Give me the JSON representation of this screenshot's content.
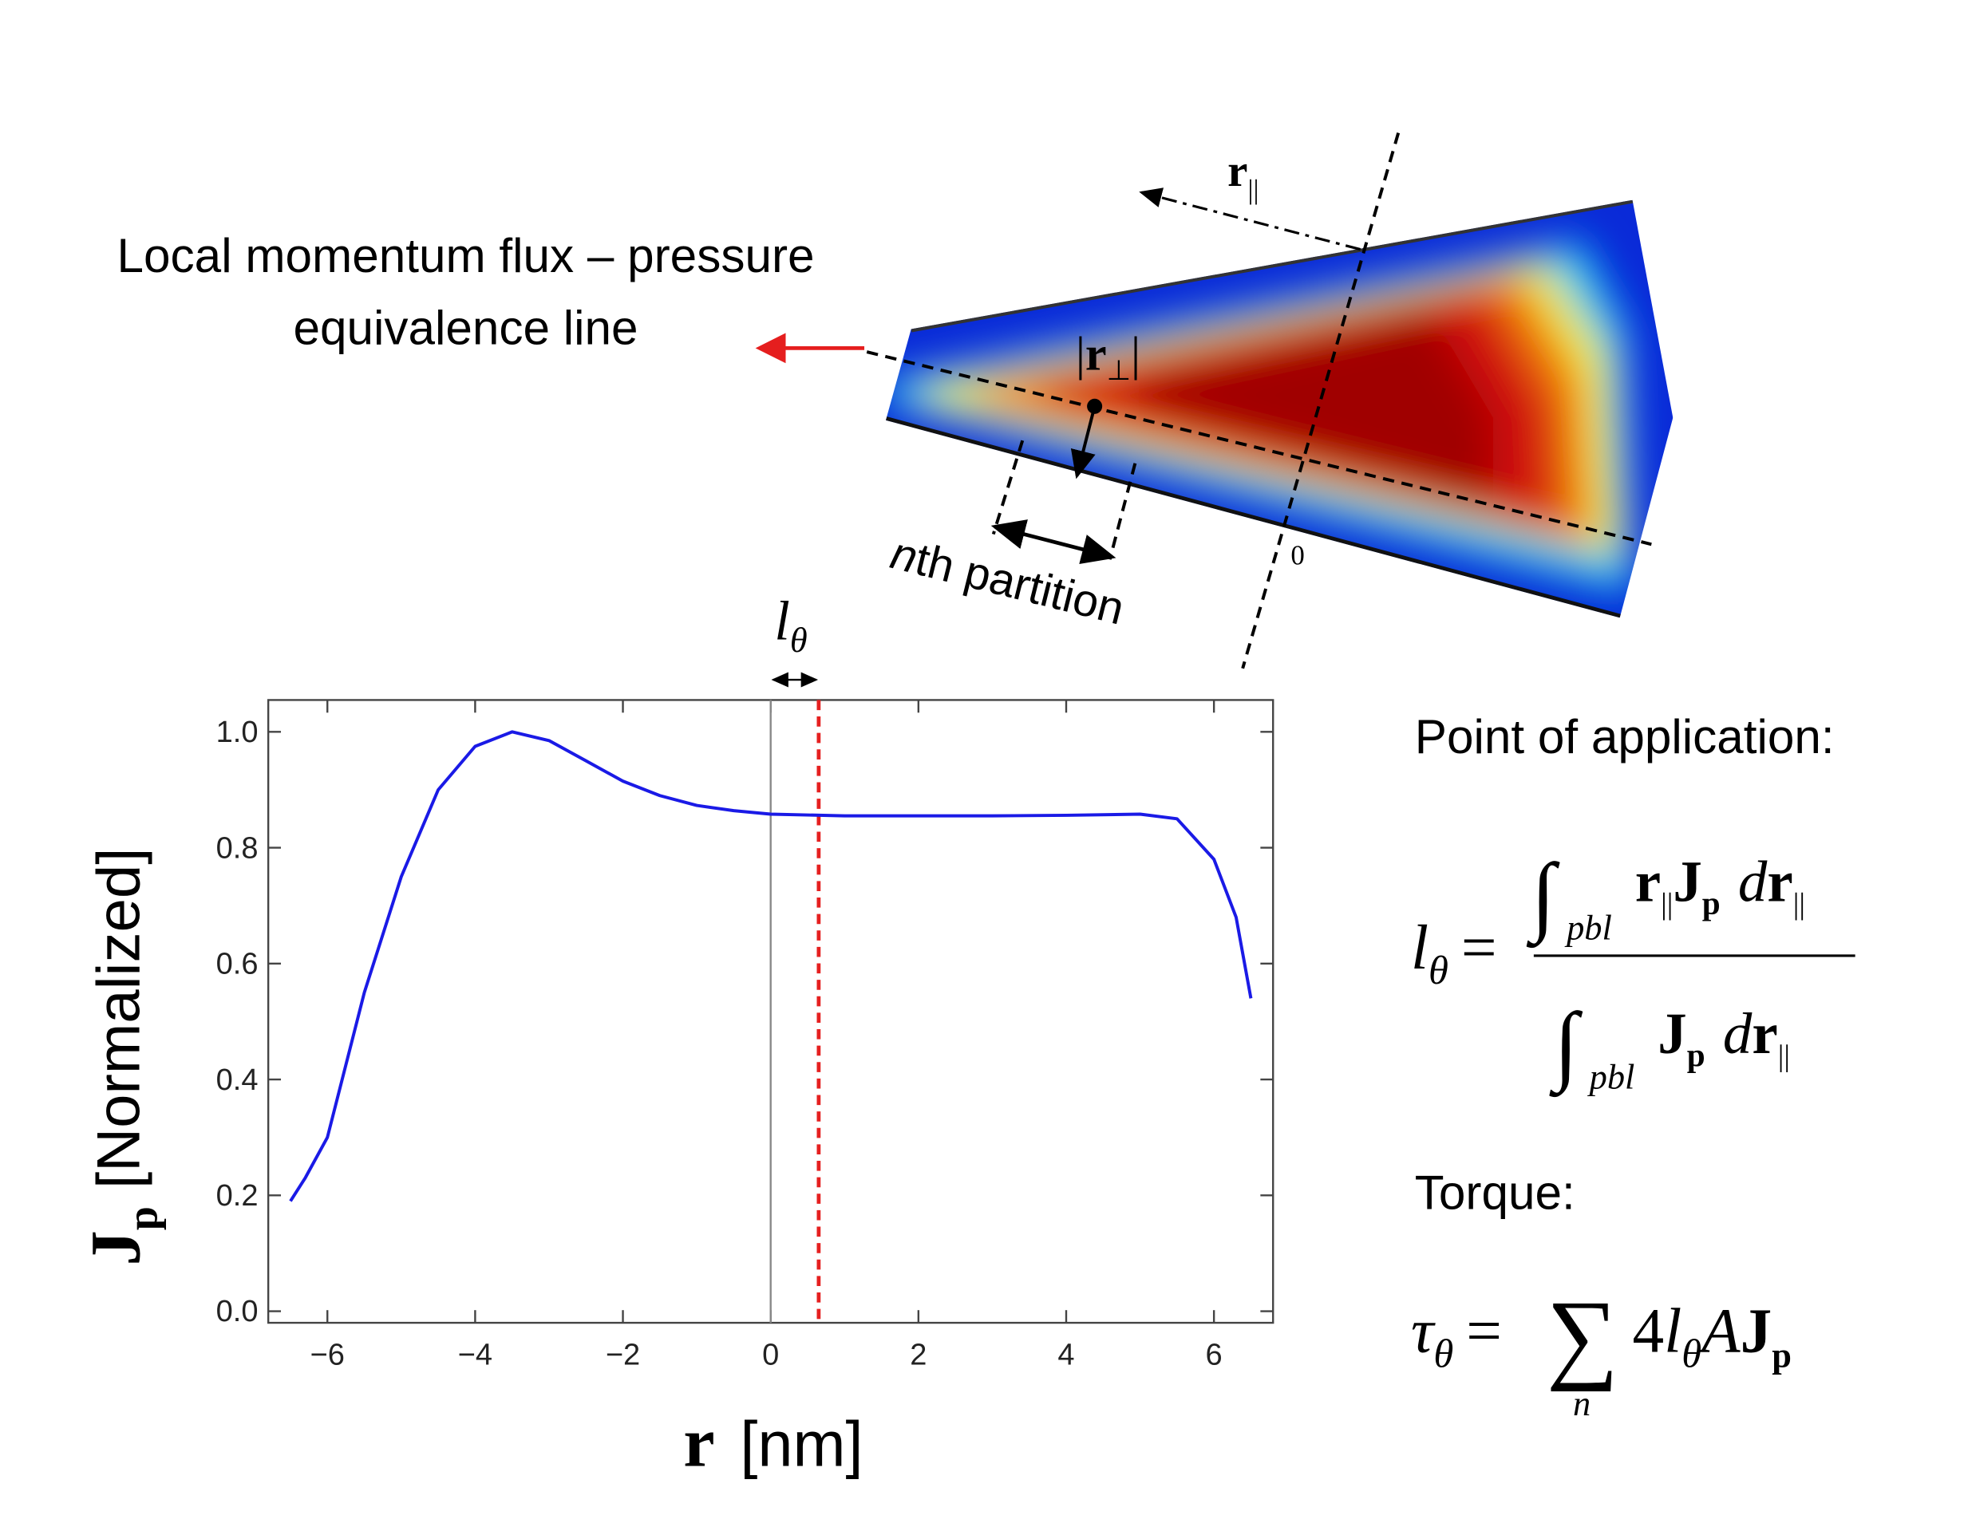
{
  "chart_data": {
    "type": "line",
    "x_label": {
      "symbol": "r",
      "unit": "[nm]"
    },
    "y_label": {
      "symbol": "J",
      "subscript": "p",
      "unit": "[Normalized]"
    },
    "x": [
      -6.5,
      -6.3,
      -6,
      -5.5,
      -5,
      -4.5,
      -4,
      -3.5,
      -3,
      -2.5,
      -2,
      -1.5,
      -1,
      -0.5,
      0,
      1,
      2,
      3,
      4,
      5,
      5.5,
      6,
      6.3,
      6.5
    ],
    "series": [
      {
        "color": "#1a1ae6",
        "values": [
          0.19,
          0.23,
          0.3,
          0.55,
          0.75,
          0.9,
          0.975,
          1.0,
          0.985,
          0.95,
          0.915,
          0.89,
          0.873,
          0.864,
          0.858,
          0.855,
          0.855,
          0.855,
          0.856,
          0.858,
          0.85,
          0.78,
          0.68,
          0.54
        ]
      }
    ],
    "xlim": [
      -6.8,
      6.8
    ],
    "ylim": [
      -0.02,
      1.055
    ],
    "xticks": [
      {
        "value": -6,
        "label": "−6"
      },
      {
        "value": -4,
        "label": "−4"
      },
      {
        "value": -2,
        "label": "−2"
      },
      0,
      2,
      4,
      6
    ],
    "yticks": [
      {
        "value": 0,
        "label": "0.0"
      },
      {
        "value": 0.2,
        "label": "0.2"
      },
      {
        "value": 0.4,
        "label": "0.4"
      },
      {
        "value": 0.6,
        "label": "0.6"
      },
      {
        "value": 0.8,
        "label": "0.8"
      },
      {
        "value": 1,
        "label": "1.0"
      }
    ],
    "reference_lines": [
      {
        "x": 0,
        "color": "#888888",
        "style": "solid"
      },
      {
        "x": 0.65,
        "color": "#e52020",
        "style": "dashed"
      }
    ],
    "annotation": {
      "symbol": "l",
      "subscript": "θ"
    }
  },
  "diagram": {
    "title_lines": [
      "Local momentum flux – pressure",
      "equivalence line"
    ],
    "r_parallel": {
      "symbol": "r",
      "subscript": "||"
    },
    "r_perp": {
      "symbol": "r",
      "subscript": "⊥"
    },
    "partition": {
      "n": "n",
      "text": "th partition"
    },
    "origin": "0"
  },
  "equations": {
    "point_label": "Point of application:",
    "torque_label": "Torque:",
    "symbols": {
      "l": "l",
      "theta": "θ",
      "eq": "=",
      "int": "∫",
      "pbl": "pbl",
      "r": "r",
      "par": "||",
      "J": "J",
      "p": "p",
      "d": "d",
      "tau": "τ",
      "sum": "∑",
      "n": "n",
      "four": "4",
      "A": "A"
    }
  }
}
